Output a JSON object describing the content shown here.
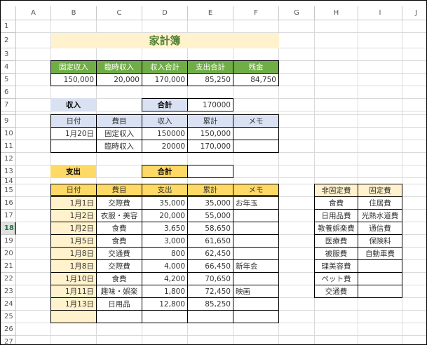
{
  "column_headers": [
    "A",
    "B",
    "C",
    "D",
    "E",
    "F",
    "G",
    "H",
    "I",
    "J"
  ],
  "row_headers": [
    "1",
    "2",
    "3",
    "4",
    "5",
    "6",
    "7",
    "9",
    "10",
    "11",
    "12",
    "13",
    "14",
    "15",
    "16",
    "17",
    "18",
    "19",
    "20",
    "21",
    "22",
    "23",
    "24",
    "25",
    "26",
    "27"
  ],
  "selected_row": "18",
  "colors": {
    "title_bg": "#fff2cc",
    "title_text": "#548235",
    "summary_header": "#70ad47",
    "income_header": "#d9e1f2",
    "expense_header": "#ffd966",
    "date_cells": "#fff2cc"
  },
  "cells": {
    "B2": "家計簿",
    "B4": "固定収入",
    "C4": "臨時収入",
    "D4": "収入合計",
    "E4": "支出合計",
    "F4": "残金",
    "B5": "150,000",
    "C5": "20,000",
    "D5": "170,000",
    "E5": "85,250",
    "F5": "84,750",
    "B7": "収入",
    "D7": "合計",
    "E7": "170000",
    "B9": "日付",
    "C9": "費目",
    "D9": "収入",
    "E9": "累計",
    "F9": "メモ",
    "B10": "1月20日",
    "C10": "固定収入",
    "D10": "150000",
    "E10": "150,000",
    "C11": "臨時収入",
    "D11": "20000",
    "E11": "170,000",
    "B13": "支出",
    "D13": "合計",
    "B15": "日付",
    "C15": "費目",
    "D15": "支出",
    "E15": "累計",
    "F15": "メモ",
    "B16": "1月1日",
    "C16": "交際費",
    "D16": "35,000",
    "E16": "35,000",
    "F16": "お年玉",
    "B17": "1月2日",
    "C17": "衣服・美容",
    "D17": "20,000",
    "E17": "55,000",
    "B18": "1月2日",
    "C18": "食費",
    "D18": "3,650",
    "E18": "58,650",
    "B19": "1月5日",
    "C19": "食費",
    "D19": "3,000",
    "E19": "61,650",
    "B20": "1月8日",
    "C20": "交通費",
    "D20": "800",
    "E20": "62,450",
    "B21": "1月8日",
    "C21": "交際費",
    "D21": "4,000",
    "E21": "66,450",
    "F21": "新年会",
    "B22": "1月10日",
    "C22": "食費",
    "D22": "4,200",
    "E22": "70,650",
    "B23": "1月11日",
    "C23": "趣味・娯楽",
    "D23": "1,800",
    "E23": "72,450",
    "F23": "映画",
    "B24": "1月13日",
    "C24": "日用品",
    "D24": "12,800",
    "E24": "85,250",
    "H15": "非固定費",
    "I15": "固定費",
    "H16": "食費",
    "I16": "住居費",
    "H17": "日用品費",
    "I17": "光熱水道費",
    "H18": "教養娯楽費",
    "I18": "通信費",
    "H19": "医療費",
    "I19": "保険料",
    "H20": "被服費",
    "I20": "自動車費",
    "H21": "理美容費",
    "H22": "ペット費",
    "H23": "交通費"
  }
}
